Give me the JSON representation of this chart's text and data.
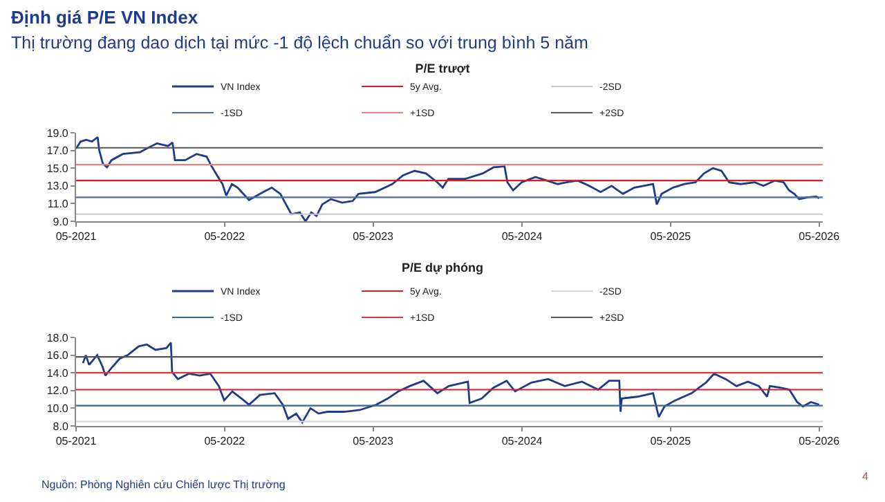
{
  "chart_data": [
    {
      "type": "line",
      "title": "P/E trượt",
      "annotations": [
        "Định giá P/E VN Index",
        "Thị trường đang dao dịch tại mức -1 độ lệch chuẩn so với trung bình 5 năm"
      ],
      "x": [
        "2021-05-01",
        "2021-05-12",
        "2021-05-26",
        "2021-06-09",
        "2021-06-23",
        "2021-06-27",
        "2021-07-06",
        "2021-07-16",
        "2021-07-27",
        "2021-08-24",
        "2021-10-05",
        "2021-10-21",
        "2021-11-16",
        "2021-12-13",
        "2021-12-24",
        "2021-12-30",
        "2022-01-24",
        "2022-02-21",
        "2022-03-18",
        "2022-03-29",
        "2022-04-15",
        "2022-04-26",
        "2022-05-05",
        "2022-05-19",
        "2022-06-02",
        "2022-06-16",
        "2022-06-30",
        "2022-08-04",
        "2022-08-25",
        "2022-09-15",
        "2022-09-29",
        "2022-10-12",
        "2022-11-02",
        "2022-11-16",
        "2022-11-30",
        "2022-12-13",
        "2022-12-27",
        "2023-01-17",
        "2023-02-14",
        "2023-03-12",
        "2023-03-26",
        "2023-05-06",
        "2023-06-17",
        "2023-07-14",
        "2023-08-11",
        "2023-09-08",
        "2023-10-06",
        "2023-10-19",
        "2023-11-02",
        "2023-12-14",
        "2024-01-25",
        "2024-02-21",
        "2024-03-19",
        "2024-03-26",
        "2024-04-09",
        "2024-04-30",
        "2024-06-03",
        "2024-07-01",
        "2024-07-28",
        "2024-08-18",
        "2024-09-15",
        "2024-10-13",
        "2024-11-10",
        "2024-12-07",
        "2025-01-04",
        "2025-02-01",
        "2025-03-19",
        "2025-03-28",
        "2025-04-09",
        "2025-05-07",
        "2025-06-04",
        "2025-07-01",
        "2025-07-22",
        "2025-08-13",
        "2025-09-03",
        "2025-09-22",
        "2025-10-20",
        "2025-11-24",
        "2025-12-15",
        "2026-01-12",
        "2026-02-03",
        "2026-02-16",
        "2026-03-01",
        "2026-03-13",
        "2026-04-03",
        "2026-04-24",
        "2026-05-01"
      ],
      "series": [
        {
          "name": "VN Index",
          "color": "#1f3c88",
          "values": [
            17.2,
            18.0,
            18.2,
            18.0,
            18.5,
            17.0,
            15.5,
            15.1,
            15.9,
            16.6,
            16.8,
            17.2,
            17.8,
            17.5,
            17.9,
            15.9,
            15.9,
            16.6,
            16.3,
            15.3,
            14.0,
            13.2,
            11.9,
            13.2,
            12.8,
            12.1,
            11.4,
            12.3,
            12.8,
            12.1,
            10.9,
            9.8,
            10.0,
            9.0,
            10.0,
            9.6,
            10.9,
            11.5,
            11.1,
            11.3,
            12.1,
            12.3,
            13.2,
            14.2,
            14.7,
            14.4,
            13.4,
            12.8,
            13.8,
            13.8,
            14.4,
            15.1,
            15.2,
            13.4,
            12.5,
            13.4,
            14.0,
            13.6,
            13.2,
            13.4,
            13.6,
            13.0,
            12.3,
            13.0,
            12.1,
            12.8,
            13.2,
            10.9,
            12.1,
            12.8,
            13.2,
            13.4,
            14.4,
            15.0,
            14.7,
            13.4,
            13.2,
            13.4,
            13.0,
            13.6,
            13.4,
            12.5,
            12.1,
            11.5,
            11.7,
            11.8,
            11.6
          ]
        },
        {
          "name": "5y Avg.",
          "color": "#d0202a",
          "x": [
            "2021-05-01",
            "2026-05-10"
          ],
          "values": [
            13.6,
            13.6
          ]
        },
        {
          "name": "-2SD",
          "color": "#c8c8c8",
          "x": [
            "2021-05-01",
            "2026-05-10"
          ],
          "values": [
            9.8,
            9.8
          ]
        },
        {
          "name": "-1SD",
          "color": "#4a6fa5",
          "x": [
            "2021-05-01",
            "2026-05-10"
          ],
          "values": [
            11.7,
            11.7
          ]
        },
        {
          "name": "+1SD",
          "color": "#f08080",
          "x": [
            "2021-05-01",
            "2026-05-10"
          ],
          "values": [
            15.4,
            15.4
          ]
        },
        {
          "name": "+2SD",
          "color": "#555555",
          "x": [
            "2021-05-01",
            "2026-05-10"
          ],
          "values": [
            17.3,
            17.3
          ]
        }
      ],
      "xlim": [
        "2021-05-01",
        "2026-05-10"
      ],
      "xticks": [
        {
          "value": "2021-05-01",
          "label": "05-2021"
        },
        {
          "value": "2022-05-01",
          "label": "05-2022"
        },
        {
          "value": "2023-05-01",
          "label": "05-2023"
        },
        {
          "value": "2024-05-01",
          "label": "05-2024"
        },
        {
          "value": "2025-05-01",
          "label": "05-2025"
        },
        {
          "value": "2026-05-01",
          "label": "05-2026"
        }
      ],
      "ylim": [
        9,
        19
      ],
      "yticks": [
        {
          "value": 9,
          "label": "9.0"
        },
        {
          "value": 11,
          "label": "11.0"
        },
        {
          "value": 13,
          "label": "13.0"
        },
        {
          "value": 15,
          "label": "15.0"
        },
        {
          "value": 17,
          "label": "17.0"
        },
        {
          "value": 19,
          "label": "19.0"
        }
      ],
      "grid": false,
      "legend": "top",
      "marker": "none",
      "line_style": "solid"
    },
    {
      "type": "line",
      "title": "P/E dự phóng",
      "annotations": [
        "Nguồn: Phòng Nghiên cứu Chiến lược Thị trường",
        "4"
      ],
      "x": [
        "2021-05-18",
        "2021-05-25",
        "2021-06-02",
        "2021-06-22",
        "2021-07-05",
        "2021-07-12",
        "2021-07-26",
        "2021-08-16",
        "2021-09-05",
        "2021-10-02",
        "2021-10-22",
        "2021-11-12",
        "2021-12-09",
        "2021-12-20",
        "2021-12-23",
        "2022-01-06",
        "2022-02-02",
        "2022-03-01",
        "2022-03-27",
        "2022-04-17",
        "2022-04-30",
        "2022-05-20",
        "2022-06-17",
        "2022-06-30",
        "2022-07-27",
        "2022-09-01",
        "2022-09-21",
        "2022-10-04",
        "2022-10-24",
        "2022-11-08",
        "2022-11-28",
        "2022-12-18",
        "2023-01-08",
        "2023-02-18",
        "2023-03-29",
        "2023-05-09",
        "2023-06-06",
        "2023-07-02",
        "2023-07-30",
        "2023-09-02",
        "2023-10-06",
        "2023-11-03",
        "2023-12-20",
        "2023-12-24",
        "2024-01-23",
        "2024-02-20",
        "2024-03-24",
        "2024-04-14",
        "2024-05-24",
        "2024-07-04",
        "2024-08-14",
        "2024-09-25",
        "2024-11-04",
        "2024-12-01",
        "2024-12-26",
        "2024-12-29",
        "2025-01-01",
        "2025-02-08",
        "2025-03-19",
        "2025-04-02",
        "2025-04-16",
        "2025-05-13",
        "2025-06-22",
        "2025-07-27",
        "2025-08-16",
        "2025-09-13",
        "2025-10-10",
        "2025-11-07",
        "2025-12-04",
        "2025-12-24",
        "2025-12-31",
        "2026-01-28",
        "2026-02-17",
        "2026-03-08",
        "2026-03-22",
        "2026-04-11",
        "2026-05-01"
      ],
      "series": [
        {
          "name": "VN Index",
          "color": "#1f3c88",
          "values": [
            15.1,
            16.0,
            14.9,
            16.0,
            14.7,
            13.7,
            14.5,
            15.6,
            16.0,
            17.0,
            17.2,
            16.6,
            16.8,
            17.4,
            14.1,
            13.3,
            13.9,
            13.7,
            13.9,
            12.5,
            10.9,
            11.9,
            10.9,
            10.4,
            11.5,
            11.7,
            10.4,
            8.8,
            9.4,
            8.4,
            10.0,
            9.4,
            9.6,
            9.6,
            9.8,
            10.4,
            11.1,
            11.9,
            12.5,
            13.1,
            11.7,
            12.5,
            13.0,
            10.6,
            11.1,
            12.3,
            13.1,
            11.9,
            12.9,
            13.3,
            12.5,
            13.0,
            12.1,
            13.1,
            13.1,
            9.6,
            11.1,
            11.3,
            11.7,
            9.0,
            10.2,
            10.9,
            11.7,
            12.9,
            13.9,
            13.3,
            12.5,
            13.0,
            12.5,
            11.3,
            12.5,
            12.3,
            12.1,
            10.7,
            10.2,
            10.7,
            10.4
          ]
        },
        {
          "name": "5y Avg.",
          "color": "#d0202a",
          "x": [
            "2021-05-01",
            "2026-05-10"
          ],
          "values": [
            12.1,
            12.1
          ]
        },
        {
          "name": "-2SD",
          "color": "#d8d8d8",
          "x": [
            "2021-05-01",
            "2026-05-10"
          ],
          "values": [
            8.5,
            8.5
          ]
        },
        {
          "name": "-1SD",
          "color": "#3f6395",
          "x": [
            "2021-05-01",
            "2026-05-10"
          ],
          "values": [
            10.3,
            10.3
          ]
        },
        {
          "name": "+1SD",
          "color": "#e0393e",
          "x": [
            "2021-05-01",
            "2026-05-10"
          ],
          "values": [
            14.0,
            14.0
          ]
        },
        {
          "name": "+2SD",
          "color": "#555555",
          "x": [
            "2021-05-01",
            "2026-05-10"
          ],
          "values": [
            15.8,
            15.8
          ]
        }
      ],
      "xlim": [
        "2021-05-01",
        "2026-05-10"
      ],
      "xticks": [
        {
          "value": "2021-05-01",
          "label": "05-2021"
        },
        {
          "value": "2022-05-01",
          "label": "05-2022"
        },
        {
          "value": "2023-05-01",
          "label": "05-2023"
        },
        {
          "value": "2024-05-01",
          "label": "05-2024"
        },
        {
          "value": "2025-05-01",
          "label": "05-2025"
        },
        {
          "value": "2026-05-01",
          "label": "05-2026"
        }
      ],
      "ylim": [
        8,
        18
      ],
      "yticks": [
        {
          "value": 8,
          "label": "8.0"
        },
        {
          "value": 10,
          "label": "10.0"
        },
        {
          "value": 12,
          "label": "12.0"
        },
        {
          "value": 14,
          "label": "14.0"
        },
        {
          "value": 16,
          "label": "16.0"
        },
        {
          "value": 18,
          "label": "18.0"
        }
      ],
      "grid": false,
      "legend": "top",
      "marker": "none",
      "line_style": "solid"
    }
  ]
}
